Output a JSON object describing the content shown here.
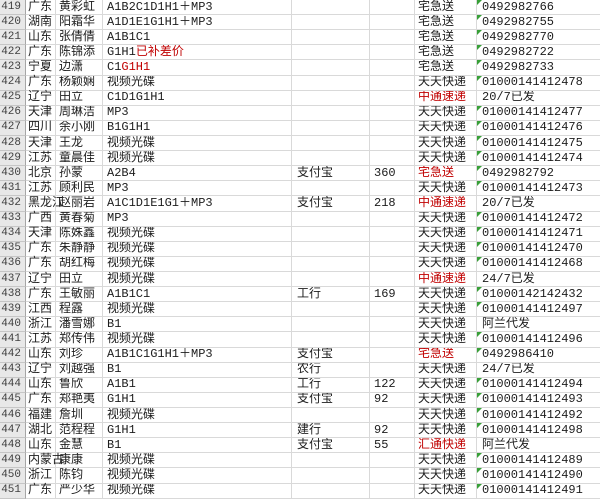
{
  "colors": {
    "text": "#1c1c1c",
    "red": "#c00000",
    "green": "#38a038",
    "grid": "#d9d9d9",
    "hdrbg": "#e8e8e8",
    "hdrline": "#a6a6a6",
    "hdrsep": "#c6c6c6",
    "hdrtext": "#3f3f3f"
  },
  "table": {
    "columns": [
      "row_number",
      "province",
      "name",
      "products",
      "payment_method",
      "amount",
      "shipping_company",
      "tracking_or_status"
    ],
    "rows": [
      {
        "n": "419",
        "province": "广东",
        "name": "黄彩虹",
        "product": "A1B2C1D1H1＋MP3",
        "product_red": "",
        "payment": "",
        "amount": "",
        "shipping": "宅急送",
        "shipping_red": false,
        "tracking": "0492982766",
        "tracking_is_number": true
      },
      {
        "n": "420",
        "province": "湖南",
        "name": "阳霜华",
        "product": "A1D1E1G1H1＋MP3",
        "product_red": "",
        "payment": "",
        "amount": "",
        "shipping": "宅急送",
        "shipping_red": false,
        "tracking": "0492982755",
        "tracking_is_number": true
      },
      {
        "n": "421",
        "province": "山东",
        "name": "张倩倩",
        "product": "A1B1C1",
        "product_red": "",
        "payment": "",
        "amount": "",
        "shipping": "宅急送",
        "shipping_red": false,
        "tracking": "0492982770",
        "tracking_is_number": true
      },
      {
        "n": "422",
        "province": "广东",
        "name": "陈锦添",
        "product": "G1H1",
        "product_red": "已补差价",
        "payment": "",
        "amount": "",
        "shipping": "宅急送",
        "shipping_red": false,
        "tracking": "0492982722",
        "tracking_is_number": true
      },
      {
        "n": "423",
        "province": "宁夏",
        "name": "边潇",
        "product": "C1",
        "product_red": "G1H1",
        "payment": "",
        "amount": "",
        "shipping": "宅急送",
        "shipping_red": false,
        "tracking": "0492982733",
        "tracking_is_number": true
      },
      {
        "n": "424",
        "province": "广东",
        "name": "杨颖娴",
        "product": "视频光碟",
        "product_red": "",
        "payment": "",
        "amount": "",
        "shipping": "天天快递",
        "shipping_red": false,
        "tracking": "01000141412478",
        "tracking_is_number": true
      },
      {
        "n": "425",
        "province": "辽宁",
        "name": "田立",
        "product": "C1D1G1H1",
        "product_red": "",
        "payment": "",
        "amount": "",
        "shipping": "中通速递",
        "shipping_red": true,
        "tracking": "20/7已发",
        "tracking_is_number": false
      },
      {
        "n": "426",
        "province": "天津",
        "name": "周琳洁",
        "product": "MP3",
        "product_red": "",
        "payment": "",
        "amount": "",
        "shipping": "天天快递",
        "shipping_red": false,
        "tracking": "01000141412477",
        "tracking_is_number": true
      },
      {
        "n": "427",
        "province": "四川",
        "name": "余小刚",
        "product": "B1G1H1",
        "product_red": "",
        "payment": "",
        "amount": "",
        "shipping": "天天快递",
        "shipping_red": false,
        "tracking": "01000141412476",
        "tracking_is_number": true
      },
      {
        "n": "428",
        "province": "天津",
        "name": "王龙",
        "product": "视频光碟",
        "product_red": "",
        "payment": "",
        "amount": "",
        "shipping": "天天快递",
        "shipping_red": false,
        "tracking": "01000141412475",
        "tracking_is_number": true
      },
      {
        "n": "429",
        "province": "江苏",
        "name": "童晨佳",
        "product": "视频光碟",
        "product_red": "",
        "payment": "",
        "amount": "",
        "shipping": "天天快递",
        "shipping_red": false,
        "tracking": "01000141412474",
        "tracking_is_number": true
      },
      {
        "n": "430",
        "province": "北京",
        "name": "孙蒙",
        "product": "A2B4",
        "product_red": "",
        "payment": "支付宝",
        "amount": "360",
        "shipping": "宅急送",
        "shipping_red": true,
        "tracking": "0492982792",
        "tracking_is_number": true
      },
      {
        "n": "431",
        "province": "江苏",
        "name": "顾利民",
        "product": "MP3",
        "product_red": "",
        "payment": "",
        "amount": "",
        "shipping": "天天快递",
        "shipping_red": false,
        "tracking": "01000141412473",
        "tracking_is_number": true
      },
      {
        "n": "432",
        "province": "黑龙江",
        "name": "赵丽岩",
        "product": "A1C1D1E1G1＋MP3",
        "product_red": "",
        "payment": "支付宝",
        "amount": "218",
        "shipping": "中通速递",
        "shipping_red": true,
        "tracking": "20/7已发",
        "tracking_is_number": false
      },
      {
        "n": "433",
        "province": "广西",
        "name": "黄春菊",
        "product": "MP3",
        "product_red": "",
        "payment": "",
        "amount": "",
        "shipping": "天天快递",
        "shipping_red": false,
        "tracking": "01000141412472",
        "tracking_is_number": true
      },
      {
        "n": "434",
        "province": "天津",
        "name": "陈姝鑫",
        "product": "视频光碟",
        "product_red": "",
        "payment": "",
        "amount": "",
        "shipping": "天天快递",
        "shipping_red": false,
        "tracking": "01000141412471",
        "tracking_is_number": true
      },
      {
        "n": "435",
        "province": "广东",
        "name": "朱静静",
        "product": "视频光碟",
        "product_red": "",
        "payment": "",
        "amount": "",
        "shipping": "天天快递",
        "shipping_red": false,
        "tracking": "01000141412470",
        "tracking_is_number": true
      },
      {
        "n": "436",
        "province": "广东",
        "name": "胡红梅",
        "product": "视频光碟",
        "product_red": "",
        "payment": "",
        "amount": "",
        "shipping": "天天快递",
        "shipping_red": false,
        "tracking": "01000141412468",
        "tracking_is_number": true
      },
      {
        "n": "437",
        "province": "辽宁",
        "name": "田立",
        "product": "视频光碟",
        "product_red": "",
        "payment": "",
        "amount": "",
        "shipping": "中通速递",
        "shipping_red": true,
        "tracking": "24/7已发",
        "tracking_is_number": false
      },
      {
        "n": "438",
        "province": "广东",
        "name": "王敏丽",
        "product": "A1B1C1",
        "product_red": "",
        "payment": "工行",
        "amount": "169",
        "shipping": "天天快递",
        "shipping_red": false,
        "tracking": "01000142142432",
        "tracking_is_number": true
      },
      {
        "n": "439",
        "province": "江西",
        "name": "程露",
        "product": "视频光碟",
        "product_red": "",
        "payment": "",
        "amount": "",
        "shipping": "天天快递",
        "shipping_red": false,
        "tracking": "01000141412497",
        "tracking_is_number": true
      },
      {
        "n": "440",
        "province": "浙江",
        "name": "潘雪娜",
        "product": "B1",
        "product_red": "",
        "payment": "",
        "amount": "",
        "shipping": "天天快递",
        "shipping_red": false,
        "tracking": "阿兰代发",
        "tracking_is_number": false
      },
      {
        "n": "441",
        "province": "江苏",
        "name": "郑传伟",
        "product": "视频光碟",
        "product_red": "",
        "payment": "",
        "amount": "",
        "shipping": "天天快递",
        "shipping_red": false,
        "tracking": "01000141412496",
        "tracking_is_number": true
      },
      {
        "n": "442",
        "province": "山东",
        "name": "刘珍",
        "product": "A1B1C1G1H1＋MP3",
        "product_red": "",
        "payment": "支付宝",
        "amount": "",
        "shipping": "宅急送",
        "shipping_red": true,
        "tracking": "0492986410",
        "tracking_is_number": true
      },
      {
        "n": "443",
        "province": "辽宁",
        "name": "刘越强",
        "product": "B1",
        "product_red": "",
        "payment": "农行",
        "amount": "",
        "shipping": "天天快递",
        "shipping_red": false,
        "tracking": "24/7已发",
        "tracking_is_number": false
      },
      {
        "n": "444",
        "province": "山东",
        "name": "鲁欣",
        "product": "A1B1",
        "product_red": "",
        "payment": "工行",
        "amount": "122",
        "shipping": "天天快递",
        "shipping_red": false,
        "tracking": "01000141412494",
        "tracking_is_number": true
      },
      {
        "n": "445",
        "province": "广东",
        "name": "郑艳夷",
        "product": "G1H1",
        "product_red": "",
        "payment": "支付宝",
        "amount": "92",
        "shipping": "天天快递",
        "shipping_red": false,
        "tracking": "01000141412493",
        "tracking_is_number": true
      },
      {
        "n": "446",
        "province": "福建",
        "name": "詹圳",
        "product": "视频光碟",
        "product_red": "",
        "payment": "",
        "amount": "",
        "shipping": "天天快递",
        "shipping_red": false,
        "tracking": "01000141412492",
        "tracking_is_number": true
      },
      {
        "n": "447",
        "province": "湖北",
        "name": "范程程",
        "product": "G1H1",
        "product_red": "",
        "payment": "建行",
        "amount": "92",
        "shipping": "天天快递",
        "shipping_red": false,
        "tracking": "01000141412498",
        "tracking_is_number": true
      },
      {
        "n": "448",
        "province": "山东",
        "name": "金慧",
        "product": "B1",
        "product_red": "",
        "payment": "支付宝",
        "amount": "55",
        "shipping": "汇通快递",
        "shipping_red": true,
        "tracking": "阿兰代发",
        "tracking_is_number": false
      },
      {
        "n": "449",
        "province": "内蒙古",
        "name": "康康",
        "product": "视频光碟",
        "product_red": "",
        "payment": "",
        "amount": "",
        "shipping": "天天快递",
        "shipping_red": false,
        "tracking": "01000141412489",
        "tracking_is_number": true
      },
      {
        "n": "450",
        "province": "浙江",
        "name": "陈钧",
        "product": "视频光碟",
        "product_red": "",
        "payment": "",
        "amount": "",
        "shipping": "天天快递",
        "shipping_red": false,
        "tracking": "01000141412490",
        "tracking_is_number": true
      },
      {
        "n": "451",
        "province": "广东",
        "name": "严少华",
        "product": "视频光碟",
        "product_red": "",
        "payment": "",
        "amount": "",
        "shipping": "天天快递",
        "shipping_red": false,
        "tracking": "01000141412491",
        "tracking_is_number": true
      }
    ]
  }
}
